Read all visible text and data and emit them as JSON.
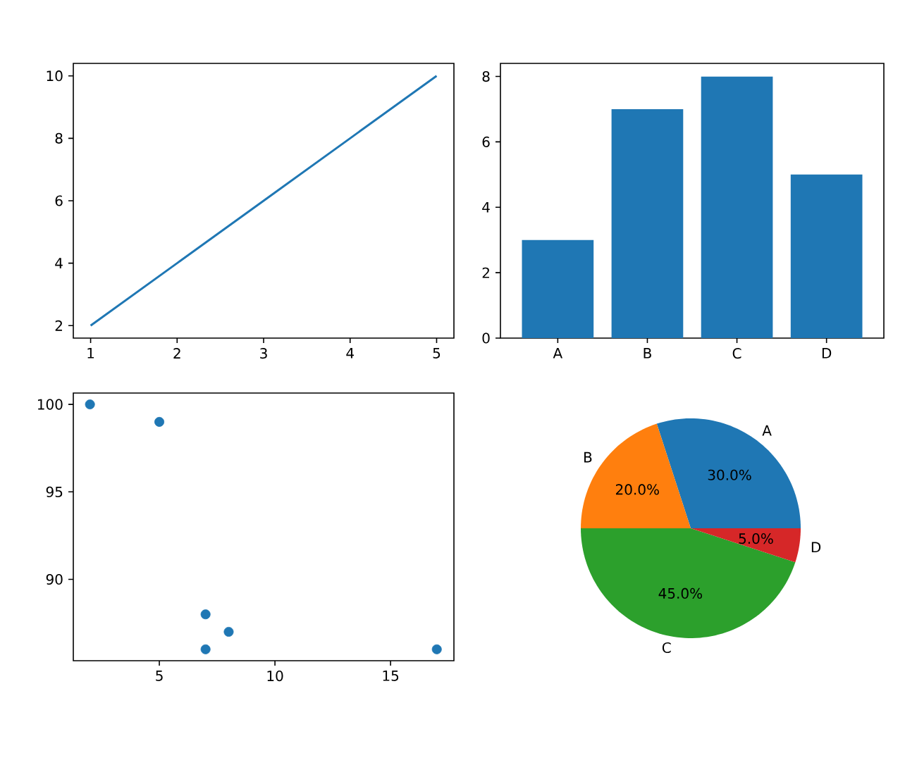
{
  "chart_data": [
    {
      "type": "line",
      "x": [
        1,
        2,
        3,
        4,
        5
      ],
      "values": [
        2,
        4,
        6,
        8,
        10
      ],
      "color": "#1f77b4",
      "xlim": [
        0.8,
        5.2
      ],
      "ylim": [
        1.6,
        10.4
      ],
      "xticks": [
        1,
        2,
        3,
        4,
        5
      ],
      "yticks": [
        2,
        4,
        6,
        8,
        10
      ],
      "grid": false
    },
    {
      "type": "bar",
      "categories": [
        "A",
        "B",
        "C",
        "D"
      ],
      "values": [
        3,
        7,
        8,
        5
      ],
      "color": "#1f77b4",
      "ylim": [
        0,
        8.4
      ],
      "yticks": [
        0,
        2,
        4,
        6,
        8
      ],
      "grid": false
    },
    {
      "type": "scatter",
      "x": [
        2,
        5,
        7,
        7,
        8,
        17
      ],
      "values": [
        100,
        99,
        88,
        86,
        87,
        86
      ],
      "color": "#1f77b4",
      "marker": "circle",
      "xlim": [
        1.28,
        17.74
      ],
      "ylim": [
        85.35,
        100.65
      ],
      "xticks": [
        5,
        10,
        15
      ],
      "yticks": [
        90,
        95,
        100
      ],
      "grid": false
    },
    {
      "type": "pie",
      "categories": [
        "A",
        "B",
        "C",
        "D"
      ],
      "values": [
        30,
        20,
        45,
        5
      ],
      "colors": [
        "#1f77b4",
        "#ff7f0e",
        "#2ca02c",
        "#d62728"
      ],
      "value_labels": [
        "30.0%",
        "20.0%",
        "45.0%",
        "5.0%"
      ]
    }
  ]
}
